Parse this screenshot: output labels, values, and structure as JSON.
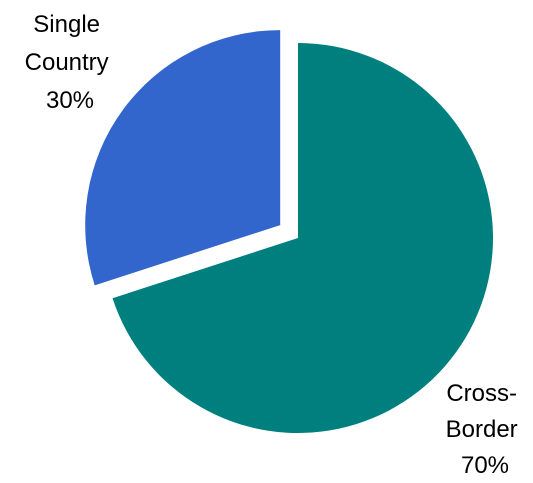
{
  "chart_data": {
    "type": "pie",
    "title": "",
    "start_angle_deg": 0,
    "direction": "clockwise",
    "slices": [
      {
        "name": "Cross-Border",
        "label_lines": [
          "Cross-",
          "Border",
          "70%"
        ],
        "value": 70,
        "color": "#007f7f",
        "exploded": false
      },
      {
        "name": "Single Country",
        "label_lines": [
          "Single",
          "Country",
          "30%"
        ],
        "value": 30,
        "color": "#3366cc",
        "exploded": true
      }
    ]
  }
}
